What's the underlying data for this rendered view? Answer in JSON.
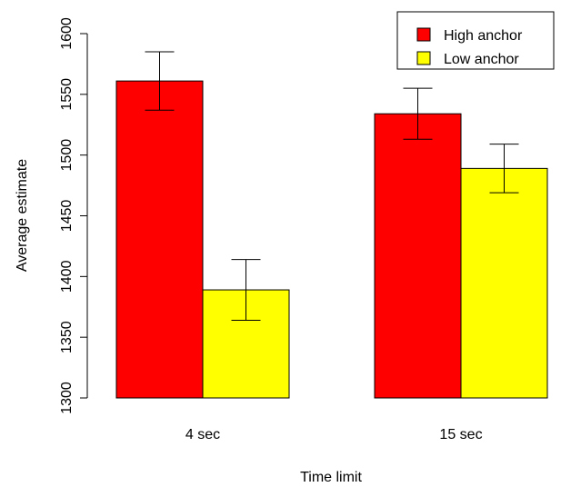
{
  "chart_data": {
    "type": "bar",
    "title": "",
    "xlabel": "Time limit",
    "ylabel": "Average estimate",
    "ylim": [
      1300,
      1600
    ],
    "yticks": [
      1300,
      1350,
      1400,
      1450,
      1500,
      1550,
      1600
    ],
    "categories": [
      "4 sec",
      "15 sec"
    ],
    "series": [
      {
        "name": "High anchor",
        "color": "#ff0000",
        "values": [
          1561,
          1534
        ],
        "error_low": [
          1537,
          1513
        ],
        "error_high": [
          1585,
          1555
        ]
      },
      {
        "name": "Low anchor",
        "color": "#ffff00",
        "values": [
          1389,
          1489
        ],
        "error_low": [
          1364,
          1469
        ],
        "error_high": [
          1414,
          1509
        ]
      }
    ],
    "legend_position": "top-right",
    "grid": false
  }
}
